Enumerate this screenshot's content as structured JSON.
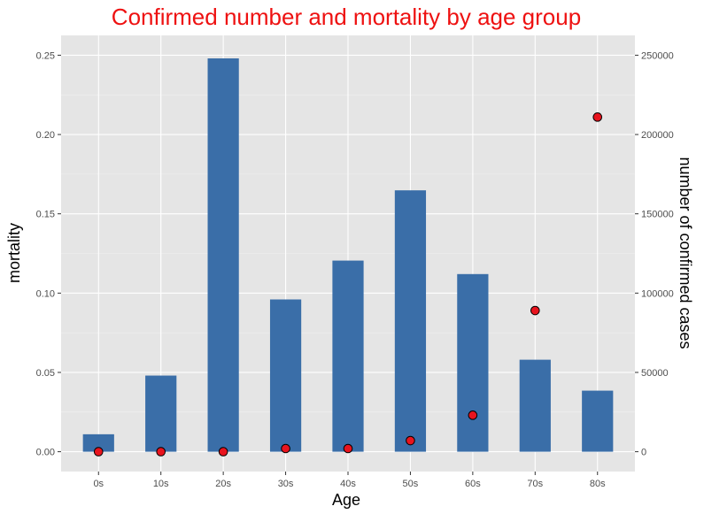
{
  "chart_data": {
    "type": "bar",
    "title": "Confirmed number and mortality by age group",
    "title_color": "#ee1111",
    "xlabel": "Age",
    "ylabel_left": "mortality",
    "ylabel_right": "number of confirmed cases",
    "categories": [
      "0s",
      "10s",
      "20s",
      "30s",
      "40s",
      "50s",
      "60s",
      "70s",
      "80s"
    ],
    "bars": {
      "name": "number of confirmed cases",
      "axis": "right",
      "color": "#3a6ea8",
      "values": [
        11000,
        48000,
        248000,
        96000,
        120500,
        164800,
        112000,
        58000,
        38500
      ]
    },
    "points": {
      "name": "mortality",
      "axis": "left",
      "fill": "#e8141e",
      "stroke": "#000000",
      "values": [
        0.0,
        0.0,
        0.0,
        0.002,
        0.002,
        0.007,
        0.023,
        0.089,
        0.211
      ]
    },
    "ylim_left": [
      -0.0125,
      0.2625
    ],
    "ylim_right": [
      -12500,
      262500
    ],
    "left_ticks": [
      0.0,
      0.05,
      0.1,
      0.15,
      0.2,
      0.25
    ],
    "left_tick_labels": [
      "0.00",
      "0.05",
      "0.10",
      "0.15",
      "0.20",
      "0.25"
    ],
    "right_ticks": [
      0,
      50000,
      100000,
      150000,
      200000,
      250000
    ],
    "right_tick_labels": [
      "0",
      "50000",
      "100000",
      "150000",
      "200000",
      "250000"
    ],
    "grid": true,
    "panel_background": "#e5e5e5"
  }
}
